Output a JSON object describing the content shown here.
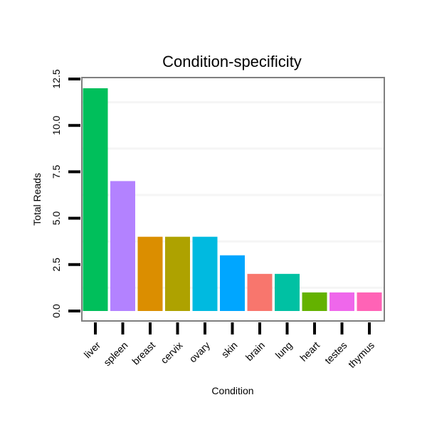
{
  "chart_data": {
    "type": "bar",
    "title": "Condition-specificity",
    "xlabel": "Condition",
    "ylabel": "Total Reads",
    "categories": [
      "liver",
      "spleen",
      "breast",
      "cervix",
      "ovary",
      "skin",
      "brain",
      "lung",
      "heart",
      "testes",
      "thymus"
    ],
    "values": [
      12,
      7,
      4,
      4,
      4,
      3,
      2,
      2,
      1,
      1,
      1
    ],
    "colors": [
      "#00BF5B",
      "#B382FF",
      "#DB8E00",
      "#AEA200",
      "#00BAE0",
      "#00A6FF",
      "#F8766D",
      "#00C1A3",
      "#64B200",
      "#EF67EB",
      "#FF63B6"
    ],
    "ylim": [
      0,
      12.5
    ],
    "yticks": [
      0,
      2.5,
      5,
      7.5,
      10,
      12.5
    ],
    "ytick_labels": [
      "0.0",
      "2.5",
      "5.0",
      "7.5",
      "10.0",
      "12.5"
    ],
    "grid": true,
    "legend": "none"
  }
}
